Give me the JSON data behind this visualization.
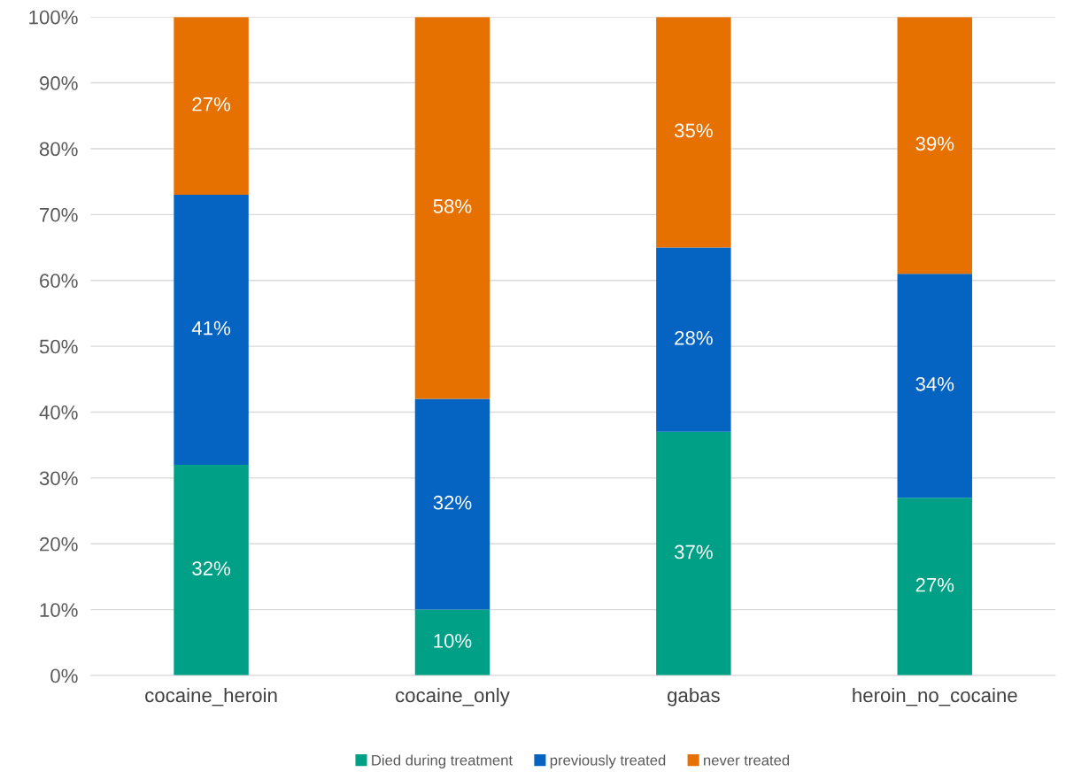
{
  "chart_data": {
    "type": "bar",
    "stacked": true,
    "categories": [
      "cocaine_heroin",
      "cocaine_only",
      "gabas",
      "heroin_no_cocaine"
    ],
    "series": [
      {
        "name": "Died during treatment",
        "color": "#00a086",
        "values": [
          32,
          10,
          37,
          27
        ],
        "value_labels": [
          "32%",
          "10%",
          "37%",
          "27%"
        ]
      },
      {
        "name": "previously treated",
        "color": "#0563c1",
        "values": [
          41,
          32,
          28,
          34
        ],
        "value_labels": [
          "41%",
          "32%",
          "28%",
          "34%"
        ]
      },
      {
        "name": "never treated",
        "color": "#e67000",
        "values": [
          27,
          58,
          35,
          39
        ],
        "value_labels": [
          "27%",
          "58%",
          "35%",
          "39%"
        ]
      }
    ],
    "ylim": [
      0,
      100
    ],
    "yticks": [
      {
        "value": 0,
        "label": "0%"
      },
      {
        "value": 10,
        "label": "10%"
      },
      {
        "value": 20,
        "label": "20%"
      },
      {
        "value": 30,
        "label": "30%"
      },
      {
        "value": 40,
        "label": "40%"
      },
      {
        "value": 50,
        "label": "50%"
      },
      {
        "value": 60,
        "label": "60%"
      },
      {
        "value": 70,
        "label": "70%"
      },
      {
        "value": 80,
        "label": "80%"
      },
      {
        "value": 90,
        "label": "90%"
      },
      {
        "value": 100,
        "label": "100%"
      }
    ],
    "grid": "y",
    "legend": "bottom"
  }
}
